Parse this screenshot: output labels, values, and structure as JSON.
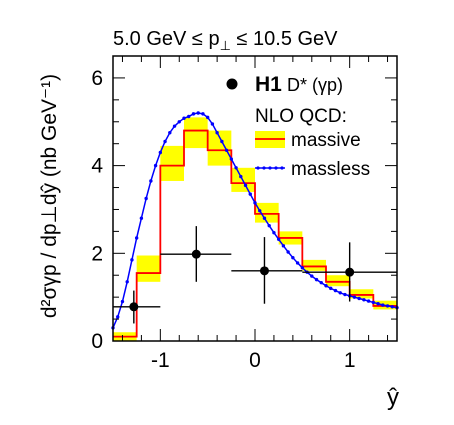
{
  "chart_data": {
    "type": "line",
    "title": "5.0 GeV ≤ p⊥ ≤ 10.5 GeV",
    "title_parts": {
      "left": "5.0 GeV ≤ p",
      "sub": "⊥",
      "right": " ≤ 10.5 GeV"
    },
    "xlabel": "ŷ",
    "ylabel": "d²σγp / dp⊥dŷ (nb GeV⁻¹)",
    "xlim": [
      -1.5,
      1.5
    ],
    "ylim": [
      0,
      6.5
    ],
    "x_ticks": [
      -1,
      0,
      1
    ],
    "x_tick_labels": [
      "-1",
      "0",
      "1"
    ],
    "y_ticks": [
      0,
      2,
      4,
      6
    ],
    "y_tick_labels": [
      "0",
      "2",
      "4",
      "6"
    ],
    "legend": {
      "placement": "top-right",
      "experiment": "H1",
      "process": "D* (γp)",
      "theory_title": "NLO QCD:",
      "entries": [
        "massive",
        "massless"
      ]
    },
    "colors": {
      "massive_line": "#ff0000",
      "massive_band": "#ffff00",
      "massless": "#0000ff",
      "data": "#000000"
    },
    "series": [
      {
        "name": "H1",
        "kind": "points",
        "points": [
          {
            "x": -1.28,
            "y": 0.78,
            "xlo": -1.5,
            "xhi": -1.0,
            "ylo": 0.4,
            "yhi": 1.15
          },
          {
            "x": -0.62,
            "y": 1.98,
            "xlo": -1.0,
            "xhi": -0.25,
            "ylo": 1.35,
            "yhi": 2.62
          },
          {
            "x": 0.1,
            "y": 1.6,
            "xlo": -0.25,
            "xhi": 0.5,
            "ylo": 0.85,
            "yhi": 2.37
          },
          {
            "x": 1.0,
            "y": 1.57,
            "xlo": 0.5,
            "xhi": 1.5,
            "ylo": 0.9,
            "yhi": 2.25
          }
        ]
      },
      {
        "name": "massive",
        "kind": "step",
        "edges": [
          -1.5,
          -1.25,
          -1.0,
          -0.75,
          -0.5,
          -0.25,
          0.0,
          0.25,
          0.5,
          0.75,
          1.0,
          1.25,
          1.5
        ],
        "values": [
          0.1,
          1.55,
          4.0,
          4.8,
          4.35,
          3.6,
          2.9,
          2.35,
          1.7,
          1.35,
          1.05,
          0.8
        ],
        "band_lo": [
          0.0,
          1.35,
          3.65,
          4.4,
          4.0,
          3.4,
          2.7,
          2.2,
          1.6,
          1.25,
          0.97,
          0.72
        ],
        "band_hi": [
          0.2,
          1.95,
          4.45,
          5.1,
          4.8,
          3.95,
          3.15,
          2.5,
          1.85,
          1.5,
          1.18,
          0.92
        ]
      },
      {
        "name": "massless",
        "kind": "line",
        "x": [
          -1.5,
          -1.45,
          -1.4,
          -1.35,
          -1.3,
          -1.25,
          -1.2,
          -1.15,
          -1.1,
          -1.05,
          -1.0,
          -0.95,
          -0.9,
          -0.85,
          -0.8,
          -0.75,
          -0.7,
          -0.65,
          -0.6,
          -0.55,
          -0.5,
          -0.45,
          -0.4,
          -0.35,
          -0.3,
          -0.25,
          -0.2,
          -0.15,
          -0.1,
          -0.05,
          0.0,
          0.05,
          0.1,
          0.15,
          0.2,
          0.25,
          0.3,
          0.35,
          0.4,
          0.45,
          0.5,
          0.55,
          0.6,
          0.65,
          0.7,
          0.75,
          0.8,
          0.85,
          0.9,
          0.95,
          1.0,
          1.05,
          1.1,
          1.15,
          1.2,
          1.25,
          1.3,
          1.35,
          1.4,
          1.45,
          1.5
        ],
        "y": [
          0.3,
          0.55,
          0.9,
          1.35,
          1.85,
          2.35,
          2.8,
          3.25,
          3.65,
          4.0,
          4.3,
          4.55,
          4.75,
          4.9,
          5.0,
          5.08,
          5.12,
          5.18,
          5.2,
          5.18,
          5.1,
          4.95,
          4.75,
          4.55,
          4.35,
          4.15,
          3.95,
          3.75,
          3.55,
          3.35,
          3.15,
          2.97,
          2.8,
          2.63,
          2.47,
          2.32,
          2.17,
          2.03,
          1.9,
          1.78,
          1.67,
          1.57,
          1.48,
          1.4,
          1.33,
          1.26,
          1.2,
          1.15,
          1.1,
          1.06,
          1.03,
          1.0,
          0.97,
          0.94,
          0.91,
          0.88,
          0.85,
          0.82,
          0.8,
          0.78,
          0.76
        ]
      }
    ]
  }
}
